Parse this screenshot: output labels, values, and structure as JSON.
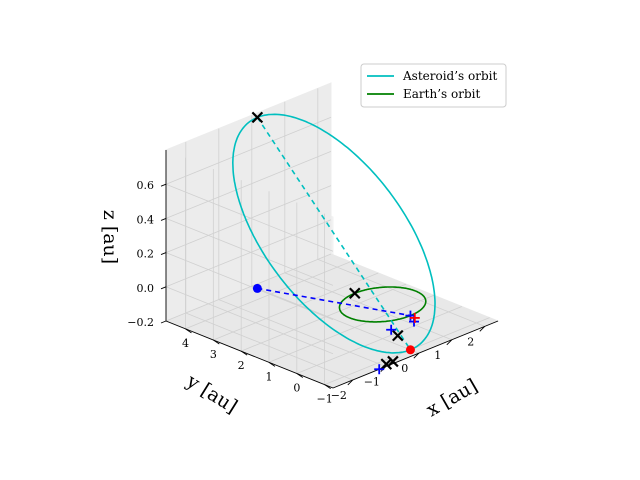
{
  "chart_data": {
    "type": "line",
    "projection": "3d",
    "xlabel": "x [au]",
    "ylabel": "y [au]",
    "zlabel": "z [au]",
    "xlim": [
      -2.6,
      2.4
    ],
    "ylim": [
      -1.3,
      4.7
    ],
    "zlim": [
      -0.2,
      0.8
    ],
    "xticks": [
      "−2",
      "−1",
      "0",
      "1",
      "2"
    ],
    "yticks": [
      "−1",
      "0",
      "1",
      "2",
      "3",
      "4"
    ],
    "zticks": [
      "−0.2",
      "0.0",
      "0.2",
      "0.4",
      "0.6"
    ],
    "legend_position": "upper-right",
    "grid": true,
    "series": [
      {
        "name": "Asteroid’s orbit",
        "color": "#00bfbf",
        "line": "solid",
        "orbit": {
          "center": [
            0.0,
            1.75,
            0.3
          ],
          "semi_major_vec": [
            0.0,
            2.75,
            0.5
          ],
          "semi_minor_vec": [
            2.0,
            0.0,
            0.0
          ]
        }
      },
      {
        "name": "Earth’s orbit",
        "color": "#008000",
        "line": "solid",
        "orbit": {
          "center": [
            0.0,
            0.0,
            0.0
          ],
          "radius": 1.0
        }
      }
    ],
    "connectors": [
      {
        "color": "#00bfbf",
        "line": "dashed",
        "from": [
          0.0,
          4.5,
          0.8
        ],
        "to": [
          0.0,
          -1.0,
          -0.2
        ]
      },
      {
        "color": "#0000ff",
        "line": "dashed",
        "from": [
          0.0,
          4.5,
          -0.2
        ],
        "to": [
          0.0,
          -1.0,
          0.0
        ]
      }
    ],
    "points": [
      {
        "label": "asteroid-start",
        "marker": "circle",
        "color": "#ff0000",
        "xyz": [
          0.0,
          -1.0,
          -0.2
        ]
      },
      {
        "label": "asteroid-end",
        "marker": "circle",
        "color": "#0000ff",
        "xyz": [
          0.0,
          4.5,
          -0.2
        ]
      },
      {
        "label": "x-marker-aphelion",
        "marker": "x",
        "color": "#000000",
        "xyz": [
          0.0,
          4.5,
          0.8
        ]
      },
      {
        "label": "x-marker-earth-1",
        "marker": "x",
        "color": "#000000",
        "xyz": [
          0.0,
          1.0,
          0.0
        ]
      },
      {
        "label": "x-marker-earth-2",
        "marker": "x",
        "color": "#000000",
        "xyz": [
          -0.3,
          -0.9,
          -0.1
        ]
      },
      {
        "label": "x-marker-earth-3",
        "marker": "x",
        "color": "#000000",
        "xyz": [
          -0.9,
          -1.2,
          -0.2
        ]
      },
      {
        "label": "x-marker-earth-4",
        "marker": "x",
        "color": "#000000",
        "xyz": [
          -0.7,
          -1.2,
          -0.2
        ]
      },
      {
        "label": "plus-earth-1",
        "marker": "plus",
        "color": "#0000ff",
        "xyz": [
          0.0,
          -1.0,
          0.0
        ]
      },
      {
        "label": "plus-earth-2",
        "marker": "plus",
        "color": "#0000ff",
        "xyz": [
          0.15,
          -0.95,
          -0.05
        ]
      },
      {
        "label": "plus-earth-3",
        "marker": "plus",
        "color": "#0000ff",
        "xyz": [
          -0.5,
          -0.9,
          -0.05
        ]
      },
      {
        "label": "plus-earth-4",
        "marker": "plus",
        "color": "#0000ff",
        "xyz": [
          -1.2,
          -1.3,
          -0.2
        ]
      },
      {
        "label": "plus-red",
        "marker": "plus",
        "color": "#ff0000",
        "xyz": [
          0.3,
          -0.8,
          -0.05
        ]
      }
    ]
  }
}
